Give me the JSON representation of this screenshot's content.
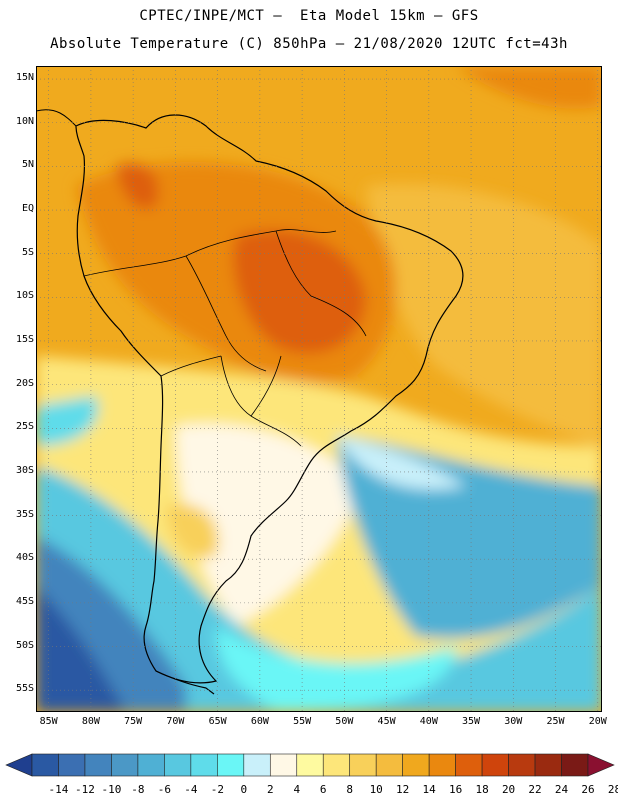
{
  "title_line1": "CPTEC/INPE/MCT –  Eta Model 15km – GFS",
  "title_line2": "Absolute Temperature (C) 850hPa – 21/08/2020 12UTC fct=43h",
  "map": {
    "lat_labels": [
      "15N",
      "10N",
      "5N",
      "EQ",
      "5S",
      "10S",
      "15S",
      "20S",
      "25S",
      "30S",
      "35S",
      "40S",
      "45S",
      "50S",
      "55S"
    ],
    "lon_labels": [
      "85W",
      "80W",
      "75W",
      "70W",
      "65W",
      "60W",
      "55W",
      "50W",
      "45W",
      "40W",
      "35W",
      "30W",
      "25W",
      "20W"
    ],
    "lat_range": [
      -57.5,
      16.5
    ],
    "lon_range": [
      -86.5,
      -19.5
    ]
  },
  "colorbar": {
    "labels": [
      "-14",
      "-12",
      "-10",
      "-8",
      "-6",
      "-4",
      "-2",
      "0",
      "2",
      "4",
      "6",
      "8",
      "10",
      "12",
      "14",
      "16",
      "18",
      "20",
      "22",
      "24",
      "26",
      "28"
    ],
    "colors": [
      "#1f3f8f",
      "#2a59a3",
      "#3b6fb2",
      "#4384bd",
      "#4b98c6",
      "#4fb0d4",
      "#58c8e0",
      "#5fdcea",
      "#6af6f6",
      "#c9f0fa",
      "#fff8e6",
      "#fefaa0",
      "#fde67a",
      "#f8d05a",
      "#f4bc3e",
      "#f0a81e",
      "#ea880f",
      "#de5f0c",
      "#cf440c",
      "#b83a0f",
      "#9a2a10",
      "#7a1a16",
      "#8a1030"
    ]
  }
}
